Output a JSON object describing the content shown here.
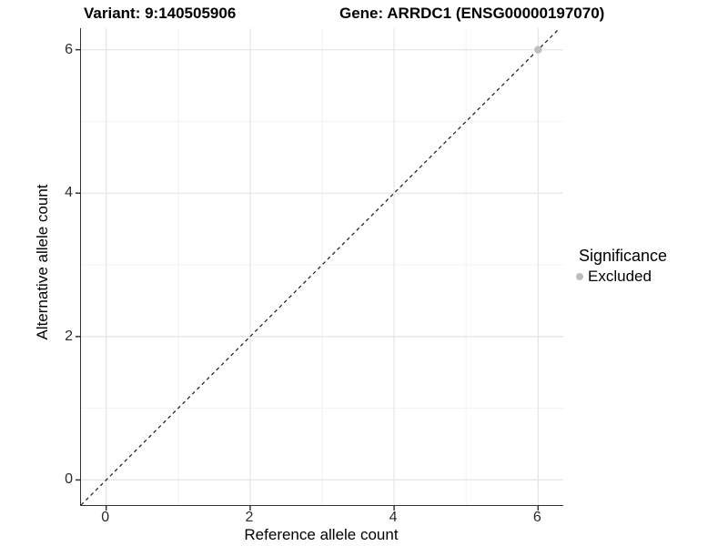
{
  "header": {
    "variant_title": "Variant: 9:140505906",
    "gene_title": "Gene: ARRDC1 (ENSG00000197070)"
  },
  "axes": {
    "x": {
      "label": "Reference allele count",
      "tick_labels": [
        "0",
        "2",
        "4",
        "6"
      ]
    },
    "y": {
      "label": "Alternative allele count",
      "tick_labels": [
        "0",
        "2",
        "4",
        "6"
      ]
    }
  },
  "legend": {
    "title": "Significance",
    "items": [
      {
        "label": "Excluded",
        "color": "#bdbdbd"
      }
    ]
  },
  "chart_data": {
    "type": "scatter",
    "title": "Variant: 9:140505906   |   Gene: ARRDC1 (ENSG00000197070)",
    "xlabel": "Reference allele count",
    "ylabel": "Alternative allele count",
    "xlim": [
      -0.35,
      6.35
    ],
    "ylim": [
      -0.35,
      6.3
    ],
    "x_ticks": [
      0,
      2,
      4,
      6
    ],
    "y_ticks": [
      0,
      2,
      4,
      6
    ],
    "x_minor_gridlines": [
      1,
      3,
      5
    ],
    "y_minor_gridlines": [
      1,
      3,
      5
    ],
    "grid": true,
    "legend_position": "right-center",
    "series": [
      {
        "name": "Excluded",
        "color": "#bdbdbd",
        "points": [
          {
            "x": 6,
            "y": 6
          }
        ]
      }
    ],
    "reference_line": {
      "style": "dashed",
      "equation": "y = x",
      "color": "#1a1a1a"
    }
  },
  "colors": {
    "background": "#ffffff",
    "axis_line": "#333333",
    "major_grid": "#e6e6e6",
    "minor_grid": "#f2f2f2",
    "tick_text": "#2b2b2b",
    "excluded_point": "#bdbdbd",
    "dashed_line": "#1a1a1a"
  }
}
